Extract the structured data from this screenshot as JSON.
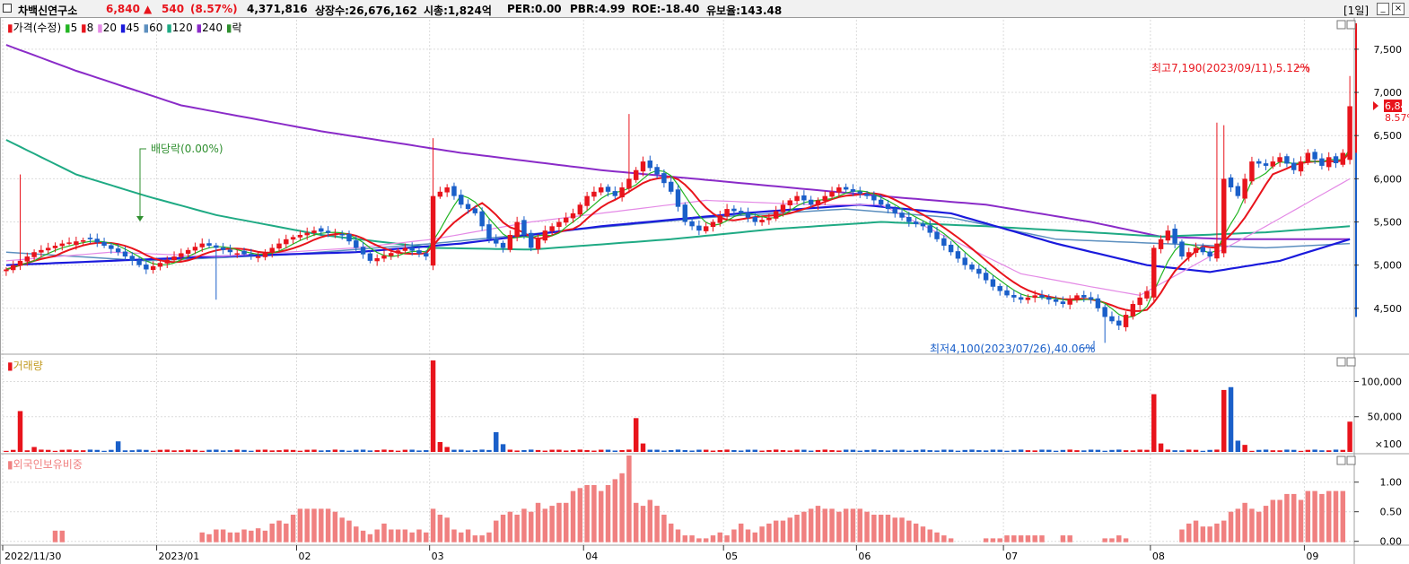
{
  "header": {
    "name": "차백신연구소",
    "price": "6,840",
    "arrow": "▲",
    "change": "540",
    "change_pct": "(8.57%)",
    "volume": "4,371,816",
    "shares": "상장수:26,676,162",
    "mcap": "시총:1,824억",
    "per": "PER:0.00",
    "pbr": "PBR:4.99",
    "roe": "ROE:-18.40",
    "float": "유보율:143.48",
    "period": "[1일]",
    "btn_min": "_",
    "btn_close": "×"
  },
  "colors": {
    "up": "#e8141c",
    "down": "#1a5fc9",
    "ma5": "#22b422",
    "ma8": "#e8141c",
    "ma20": "#e48ae6",
    "ma45": "#1a1adc",
    "ma60": "#5c8fbf",
    "ma120": "#1faa84",
    "ma240": "#8a2bc8",
    "foreign": "#f08080"
  },
  "legend": {
    "price": [
      {
        "text": "가격(수정)",
        "color": "#e8141c"
      },
      {
        "text": "5",
        "color": "#22b422"
      },
      {
        "text": "8",
        "color": "#e8141c"
      },
      {
        "text": "20",
        "color": "#e48ae6"
      },
      {
        "text": "45",
        "color": "#1a1adc"
      },
      {
        "text": "60",
        "color": "#5c8fbf"
      },
      {
        "text": "120",
        "color": "#1faa84"
      },
      {
        "text": "240",
        "color": "#8a2bc8"
      },
      {
        "text": "락",
        "color": "#2f8f2f"
      }
    ],
    "volume": "거래량",
    "foreign": "외국인보유비중"
  },
  "annotations": {
    "high": "최고7,190(2023/09/11),5.12%",
    "low": "최저4,100(2023/07/26),40.06%",
    "dividend": "배당락(0.00%)",
    "last_price": "6,840",
    "last_pct": "8.57%"
  },
  "chart_data": {
    "type": "candlestick",
    "price_axis": {
      "min": 4000,
      "max": 7800,
      "ticks": [
        "7,500",
        "7,000",
        "6,500",
        "6,000",
        "5,500",
        "5,000",
        "4,500"
      ],
      "tick_values": [
        7500,
        7000,
        6500,
        6000,
        5500,
        5000,
        4500
      ]
    },
    "volume_axis": {
      "max": 135000,
      "ticks": [
        "100,000",
        "50,000"
      ],
      "tick_values": [
        100000,
        50000
      ],
      "unit": "×100"
    },
    "foreign_axis": {
      "min": -0.05,
      "max": 1.45,
      "ticks": [
        "1.00",
        "0.50",
        "0.00"
      ],
      "tick_values": [
        1.0,
        0.5,
        0.0
      ]
    },
    "x_labels": [
      {
        "label": "2022/11/30",
        "index": 0
      },
      {
        "label": "2023/01",
        "index": 22
      },
      {
        "label": "02",
        "index": 42
      },
      {
        "label": "03",
        "index": 61
      },
      {
        "label": "04",
        "index": 83
      },
      {
        "label": "05",
        "index": 103
      },
      {
        "label": "06",
        "index": 122
      },
      {
        "label": "07",
        "index": 143
      },
      {
        "label": "08",
        "index": 164
      },
      {
        "label": "09",
        "index": 186
      }
    ],
    "anchors": [
      [
        0,
        4950
      ],
      [
        4,
        5150
      ],
      [
        8,
        5250
      ],
      [
        12,
        5300
      ],
      [
        16,
        5150
      ],
      [
        20,
        4950
      ],
      [
        24,
        5100
      ],
      [
        28,
        5250
      ],
      [
        32,
        5150
      ],
      [
        36,
        5100
      ],
      [
        40,
        5300
      ],
      [
        44,
        5400
      ],
      [
        48,
        5350
      ],
      [
        52,
        5050
      ],
      [
        57,
        5200
      ],
      [
        60,
        5100
      ],
      [
        61,
        5800
      ],
      [
        63,
        5900
      ],
      [
        65,
        5700
      ],
      [
        67,
        5600
      ],
      [
        69,
        5300
      ],
      [
        71,
        5200
      ],
      [
        73,
        5500
      ],
      [
        75,
        5200
      ],
      [
        77,
        5400
      ],
      [
        79,
        5500
      ],
      [
        81,
        5600
      ],
      [
        83,
        5800
      ],
      [
        85,
        5900
      ],
      [
        87,
        5800
      ],
      [
        89,
        6000
      ],
      [
        91,
        6200
      ],
      [
        93,
        6050
      ],
      [
        95,
        5850
      ],
      [
        97,
        5500
      ],
      [
        99,
        5400
      ],
      [
        101,
        5500
      ],
      [
        103,
        5650
      ],
      [
        105,
        5600
      ],
      [
        107,
        5500
      ],
      [
        109,
        5550
      ],
      [
        111,
        5700
      ],
      [
        113,
        5800
      ],
      [
        115,
        5700
      ],
      [
        117,
        5800
      ],
      [
        119,
        5900
      ],
      [
        121,
        5850
      ],
      [
        123,
        5800
      ],
      [
        125,
        5700
      ],
      [
        127,
        5600
      ],
      [
        129,
        5500
      ],
      [
        131,
        5450
      ],
      [
        133,
        5300
      ],
      [
        135,
        5150
      ],
      [
        137,
        5000
      ],
      [
        139,
        4900
      ],
      [
        141,
        4750
      ],
      [
        143,
        4650
      ],
      [
        145,
        4600
      ],
      [
        147,
        4650
      ],
      [
        149,
        4600
      ],
      [
        151,
        4550
      ],
      [
        153,
        4650
      ],
      [
        155,
        4600
      ],
      [
        157,
        4400
      ],
      [
        159,
        4300
      ],
      [
        161,
        4550
      ],
      [
        163,
        4700
      ],
      [
        164,
        5200
      ],
      [
        166,
        5400
      ],
      [
        168,
        5100
      ],
      [
        170,
        5200
      ],
      [
        172,
        5100
      ],
      [
        173,
        5250
      ],
      [
        174,
        6000
      ],
      [
        176,
        5800
      ],
      [
        178,
        6200
      ],
      [
        180,
        6150
      ],
      [
        182,
        6250
      ],
      [
        184,
        6100
      ],
      [
        186,
        6300
      ],
      [
        188,
        6150
      ],
      [
        189,
        6250
      ],
      [
        190,
        6180
      ],
      [
        191,
        6300
      ],
      [
        192,
        6840
      ]
    ],
    "ma_series": {
      "ma240": [
        [
          0,
          7550
        ],
        [
          10,
          7250
        ],
        [
          25,
          6850
        ],
        [
          45,
          6550
        ],
        [
          65,
          6300
        ],
        [
          85,
          6100
        ],
        [
          105,
          5950
        ],
        [
          125,
          5800
        ],
        [
          140,
          5700
        ],
        [
          155,
          5500
        ],
        [
          165,
          5330
        ],
        [
          175,
          5300
        ],
        [
          192,
          5300
        ]
      ],
      "ma120": [
        [
          0,
          6450
        ],
        [
          10,
          6050
        ],
        [
          20,
          5800
        ],
        [
          30,
          5580
        ],
        [
          45,
          5350
        ],
        [
          61,
          5200
        ],
        [
          75,
          5180
        ],
        [
          95,
          5300
        ],
        [
          110,
          5420
        ],
        [
          125,
          5500
        ],
        [
          140,
          5450
        ],
        [
          155,
          5380
        ],
        [
          165,
          5330
        ],
        [
          180,
          5380
        ],
        [
          192,
          5450
        ]
      ],
      "ma60": [
        [
          0,
          5150
        ],
        [
          20,
          5050
        ],
        [
          40,
          5120
        ],
        [
          61,
          5250
        ],
        [
          80,
          5400
        ],
        [
          100,
          5550
        ],
        [
          120,
          5650
        ],
        [
          135,
          5550
        ],
        [
          150,
          5300
        ],
        [
          165,
          5250
        ],
        [
          180,
          5200
        ],
        [
          192,
          5250
        ]
      ],
      "ma45": [
        [
          0,
          5000
        ],
        [
          15,
          5050
        ],
        [
          30,
          5100
        ],
        [
          50,
          5150
        ],
        [
          65,
          5250
        ],
        [
          85,
          5450
        ],
        [
          105,
          5600
        ],
        [
          122,
          5700
        ],
        [
          135,
          5600
        ],
        [
          150,
          5250
        ],
        [
          163,
          5000
        ],
        [
          172,
          4920
        ],
        [
          182,
          5050
        ],
        [
          192,
          5300
        ]
      ],
      "ma20": [
        [
          0,
          5050
        ],
        [
          15,
          5150
        ],
        [
          30,
          5100
        ],
        [
          50,
          5200
        ],
        [
          61,
          5300
        ],
        [
          75,
          5500
        ],
        [
          90,
          5650
        ],
        [
          100,
          5750
        ],
        [
          115,
          5700
        ],
        [
          125,
          5700
        ],
        [
          135,
          5300
        ],
        [
          145,
          4900
        ],
        [
          155,
          4750
        ],
        [
          162,
          4650
        ],
        [
          172,
          5100
        ],
        [
          180,
          5450
        ],
        [
          192,
          6000
        ]
      ]
    },
    "volume_spikes": [
      [
        2,
        58000
      ],
      [
        4,
        7000
      ],
      [
        16,
        15000
      ],
      [
        61,
        130000
      ],
      [
        62,
        14000
      ],
      [
        63,
        7000
      ],
      [
        70,
        28000
      ],
      [
        71,
        11000
      ],
      [
        90,
        48000
      ],
      [
        91,
        12000
      ],
      [
        164,
        82000
      ],
      [
        165,
        12000
      ],
      [
        174,
        88000
      ],
      [
        175,
        92000
      ],
      [
        176,
        16000
      ],
      [
        177,
        10000
      ],
      [
        192,
        43000
      ]
    ],
    "foreign_values": [
      [
        7,
        0.18
      ],
      [
        8,
        0.18
      ],
      [
        28,
        0.15
      ],
      [
        29,
        0.12
      ],
      [
        30,
        0.2
      ],
      [
        31,
        0.2
      ],
      [
        32,
        0.15
      ],
      [
        33,
        0.15
      ],
      [
        34,
        0.2
      ],
      [
        35,
        0.18
      ],
      [
        36,
        0.22
      ],
      [
        37,
        0.18
      ],
      [
        38,
        0.3
      ],
      [
        39,
        0.35
      ],
      [
        40,
        0.3
      ],
      [
        41,
        0.45
      ],
      [
        42,
        0.55
      ],
      [
        43,
        0.55
      ],
      [
        44,
        0.55
      ],
      [
        45,
        0.55
      ],
      [
        46,
        0.55
      ],
      [
        47,
        0.5
      ],
      [
        48,
        0.4
      ],
      [
        49,
        0.35
      ],
      [
        50,
        0.25
      ],
      [
        51,
        0.18
      ],
      [
        52,
        0.12
      ],
      [
        53,
        0.2
      ],
      [
        54,
        0.3
      ],
      [
        55,
        0.2
      ],
      [
        56,
        0.2
      ],
      [
        57,
        0.2
      ],
      [
        58,
        0.15
      ],
      [
        59,
        0.2
      ],
      [
        60,
        0.15
      ],
      [
        61,
        0.55
      ],
      [
        62,
        0.45
      ],
      [
        63,
        0.4
      ],
      [
        64,
        0.2
      ],
      [
        65,
        0.15
      ],
      [
        66,
        0.2
      ],
      [
        67,
        0.1
      ],
      [
        68,
        0.1
      ],
      [
        69,
        0.15
      ],
      [
        70,
        0.35
      ],
      [
        71,
        0.45
      ],
      [
        72,
        0.5
      ],
      [
        73,
        0.45
      ],
      [
        74,
        0.55
      ],
      [
        75,
        0.5
      ],
      [
        76,
        0.65
      ],
      [
        77,
        0.55
      ],
      [
        78,
        0.6
      ],
      [
        79,
        0.65
      ],
      [
        80,
        0.65
      ],
      [
        81,
        0.85
      ],
      [
        82,
        0.9
      ],
      [
        83,
        0.95
      ],
      [
        84,
        0.95
      ],
      [
        85,
        0.85
      ],
      [
        86,
        0.95
      ],
      [
        87,
        1.05
      ],
      [
        88,
        1.15
      ],
      [
        89,
        1.45
      ],
      [
        90,
        0.65
      ],
      [
        91,
        0.6
      ],
      [
        92,
        0.7
      ],
      [
        93,
        0.6
      ],
      [
        94,
        0.45
      ],
      [
        95,
        0.3
      ],
      [
        96,
        0.2
      ],
      [
        97,
        0.1
      ],
      [
        98,
        0.1
      ],
      [
        99,
        0.05
      ],
      [
        100,
        0.05
      ],
      [
        101,
        0.1
      ],
      [
        102,
        0.15
      ],
      [
        103,
        0.1
      ],
      [
        104,
        0.2
      ],
      [
        105,
        0.3
      ],
      [
        106,
        0.2
      ],
      [
        107,
        0.15
      ],
      [
        108,
        0.25
      ],
      [
        109,
        0.3
      ],
      [
        110,
        0.35
      ],
      [
        111,
        0.35
      ],
      [
        112,
        0.4
      ],
      [
        113,
        0.45
      ],
      [
        114,
        0.5
      ],
      [
        115,
        0.55
      ],
      [
        116,
        0.6
      ],
      [
        117,
        0.55
      ],
      [
        118,
        0.55
      ],
      [
        119,
        0.5
      ],
      [
        120,
        0.55
      ],
      [
        121,
        0.55
      ],
      [
        122,
        0.55
      ],
      [
        123,
        0.5
      ],
      [
        124,
        0.45
      ],
      [
        125,
        0.45
      ],
      [
        126,
        0.45
      ],
      [
        127,
        0.4
      ],
      [
        128,
        0.4
      ],
      [
        129,
        0.35
      ],
      [
        130,
        0.3
      ],
      [
        131,
        0.25
      ],
      [
        132,
        0.2
      ],
      [
        133,
        0.15
      ],
      [
        134,
        0.1
      ],
      [
        135,
        0.05
      ],
      [
        140,
        0.05
      ],
      [
        141,
        0.05
      ],
      [
        142,
        0.05
      ],
      [
        143,
        0.1
      ],
      [
        144,
        0.1
      ],
      [
        145,
        0.1
      ],
      [
        146,
        0.1
      ],
      [
        147,
        0.1
      ],
      [
        148,
        0.1
      ],
      [
        151,
        0.1
      ],
      [
        152,
        0.1
      ],
      [
        157,
        0.05
      ],
      [
        158,
        0.05
      ],
      [
        159,
        0.1
      ],
      [
        160,
        0.05
      ],
      [
        168,
        0.2
      ],
      [
        169,
        0.3
      ],
      [
        170,
        0.35
      ],
      [
        171,
        0.25
      ],
      [
        172,
        0.25
      ],
      [
        173,
        0.3
      ],
      [
        174,
        0.35
      ],
      [
        175,
        0.5
      ],
      [
        176,
        0.55
      ],
      [
        177,
        0.65
      ],
      [
        178,
        0.55
      ],
      [
        179,
        0.5
      ],
      [
        180,
        0.6
      ],
      [
        181,
        0.7
      ],
      [
        182,
        0.7
      ],
      [
        183,
        0.8
      ],
      [
        184,
        0.8
      ],
      [
        185,
        0.7
      ],
      [
        186,
        0.85
      ],
      [
        187,
        0.85
      ],
      [
        188,
        0.8
      ],
      [
        189,
        0.85
      ],
      [
        190,
        0.85
      ],
      [
        191,
        0.85
      ]
    ]
  }
}
